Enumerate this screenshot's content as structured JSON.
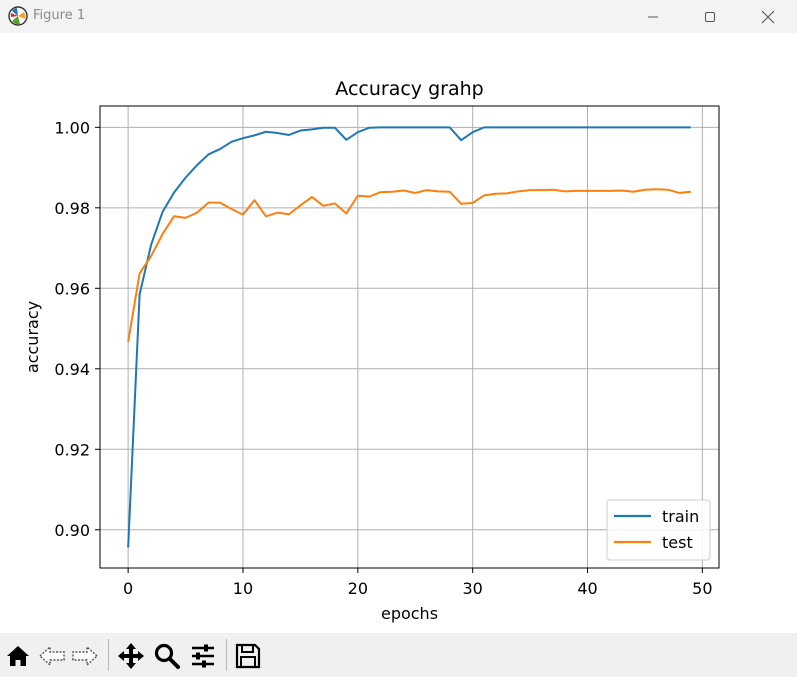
{
  "window": {
    "title": "Figure 1",
    "icons": {
      "app": "matplotlib-icon",
      "minimize": "minimize-icon",
      "maximize": "maximize-icon",
      "close": "close-icon"
    }
  },
  "toolbar": {
    "tools": [
      "home-icon",
      "back-arrow-icon",
      "forward-arrow-icon",
      "pan-icon",
      "zoom-icon",
      "configure-subplots-icon",
      "save-icon"
    ]
  },
  "chart_data": {
    "type": "line",
    "title": "Accuracy grahp",
    "xlabel": "epochs",
    "ylabel": "accuracy",
    "xlim": [
      -2.45,
      51.45
    ],
    "ylim": [
      0.8905,
      1.0053
    ],
    "xticks": [
      0,
      10,
      20,
      30,
      40,
      50
    ],
    "xtick_labels": [
      "0",
      "10",
      "20",
      "30",
      "40",
      "50"
    ],
    "yticks": [
      0.9,
      0.92,
      0.94,
      0.96,
      0.98,
      1.0
    ],
    "ytick_labels": [
      "0.90",
      "0.92",
      "0.94",
      "0.96",
      "0.98",
      "1.00"
    ],
    "grid": true,
    "legend_position": "lower right",
    "x": [
      0,
      1,
      2,
      3,
      4,
      5,
      6,
      7,
      8,
      9,
      10,
      11,
      12,
      13,
      14,
      15,
      16,
      17,
      18,
      19,
      20,
      21,
      22,
      23,
      24,
      25,
      26,
      27,
      28,
      29,
      30,
      31,
      32,
      33,
      34,
      35,
      36,
      37,
      38,
      39,
      40,
      41,
      42,
      43,
      44,
      45,
      46,
      47,
      48,
      49
    ],
    "series": [
      {
        "name": "train",
        "color": "#1f77b4",
        "values": [
          0.8956,
          0.9585,
          0.9708,
          0.979,
          0.9838,
          0.9875,
          0.9906,
          0.9933,
          0.9946,
          0.9964,
          0.9973,
          0.998,
          0.9989,
          0.9986,
          0.9981,
          0.9992,
          0.9995,
          0.9999,
          0.9999,
          0.9969,
          0.9988,
          0.9999,
          1.0,
          1.0,
          1.0,
          1.0,
          1.0,
          1.0,
          1.0,
          0.9968,
          0.9988,
          1.0,
          1.0,
          1.0,
          1.0,
          1.0,
          1.0,
          1.0,
          1.0,
          1.0,
          1.0,
          1.0,
          1.0,
          1.0,
          1.0,
          1.0,
          1.0,
          1.0,
          1.0,
          1.0
        ]
      },
      {
        "name": "test",
        "color": "#ff7f0e",
        "values": [
          0.9467,
          0.9637,
          0.968,
          0.9735,
          0.9779,
          0.9775,
          0.9788,
          0.9813,
          0.9813,
          0.9797,
          0.9783,
          0.9819,
          0.9779,
          0.9788,
          0.9784,
          0.9806,
          0.9827,
          0.9805,
          0.9811,
          0.9786,
          0.983,
          0.9828,
          0.9839,
          0.984,
          0.9843,
          0.9837,
          0.9844,
          0.9841,
          0.984,
          0.981,
          0.9812,
          0.9831,
          0.9835,
          0.9836,
          0.9841,
          0.9844,
          0.9844,
          0.9845,
          0.9841,
          0.9842,
          0.9842,
          0.9842,
          0.9842,
          0.9843,
          0.984,
          0.9845,
          0.9846,
          0.9845,
          0.9837,
          0.984
        ]
      }
    ]
  }
}
